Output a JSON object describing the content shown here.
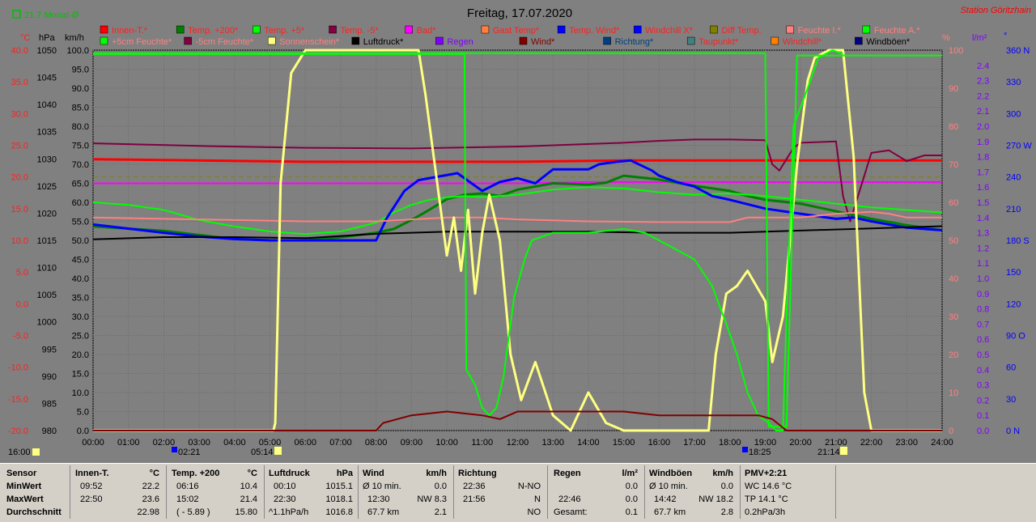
{
  "header": {
    "title": "Freitag, 17.07.2020",
    "station": "Station Göritzhain",
    "monthly": "21.7 Monat-Ø"
  },
  "axis_units": {
    "c": "°C",
    "hpa": "hPa",
    "kmh": "km/h",
    "pct": "%",
    "lm2": "l/m²",
    "deg": "°"
  },
  "legend_row1": [
    {
      "label": "Innen-T.*",
      "color": "#ff0000",
      "text_color": "#ff2020"
    },
    {
      "label": "Temp. +200*",
      "color": "#008000",
      "text_color": "#ff2020"
    },
    {
      "label": "Temp. +5*",
      "color": "#00ff00",
      "text_color": "#ff2020"
    },
    {
      "label": "Temp. -5*",
      "color": "#800040",
      "text_color": "#ff2020"
    },
    {
      "label": "Bad*",
      "color": "#ff00ff",
      "text_color": "#ff2020"
    },
    {
      "label": "Gast Temp*",
      "color": "#ff8040",
      "text_color": "#ff2020"
    },
    {
      "label": "Temp. Wind*",
      "color": "#0000ff",
      "text_color": "#ff2020"
    },
    {
      "label": "Windchill X*",
      "color": "#0000ff",
      "text_color": "#ff2020"
    },
    {
      "label": "Diff Temp.",
      "color": "#808000",
      "text_color": "#ff2020"
    },
    {
      "label": "Feuchte I.*",
      "color": "#ff8080",
      "text_color": "#ff8080"
    },
    {
      "label": "Feuchte A.*",
      "color": "#00ff00",
      "text_color": "#ff8080"
    }
  ],
  "legend_row2": [
    {
      "label": "+5cm Feuchte*",
      "color": "#00ff00",
      "text_color": "#ff8080"
    },
    {
      "label": "-5cm Feuchte*",
      "color": "#800040",
      "text_color": "#ff8080"
    },
    {
      "label": "Sonnenschein*",
      "color": "#ffff80",
      "text_color": "#ff8080"
    },
    {
      "label": "Luftdruck*",
      "color": "#000000",
      "text_color": "#000000"
    },
    {
      "label": "Regen",
      "color": "#8000ff",
      "text_color": "#8000ff"
    },
    {
      "label": "Wind*",
      "color": "#800000",
      "text_color": "#800000"
    },
    {
      "label": "Richtung*",
      "color": "#004080",
      "text_color": "#004080"
    },
    {
      "label": "Taupunkt*",
      "color": "#408080",
      "text_color": "#ff2020"
    },
    {
      "label": "Windchill*",
      "color": "#ff8000",
      "text_color": "#ff2020"
    },
    {
      "label": "Windböen*",
      "color": "#000080",
      "text_color": "#000000"
    }
  ],
  "sun_events": {
    "sunrise": "05:14",
    "dawn": "02:21",
    "sunset": "21:14",
    "dusk": "18:25"
  },
  "chart_data": {
    "type": "line",
    "title": "Freitag, 17.07.2020",
    "x_ticks": [
      "00:00",
      "01:00",
      "02:00",
      "03:00",
      "04:00",
      "05:00",
      "06:00",
      "07:00",
      "08:00",
      "09:00",
      "10:00",
      "11:00",
      "12:00",
      "13:00",
      "14:00",
      "15:00",
      "16:00",
      "17:00",
      "18:00",
      "19:00",
      "20:00",
      "21:00",
      "22:00",
      "23:00",
      "24:00"
    ],
    "xlim": [
      0,
      24
    ],
    "axes": {
      "temp_c": {
        "ticks": [
          "40.0",
          "35.0",
          "30.0",
          "25.0",
          "20.0",
          "15.0",
          "10.0",
          "5.0",
          "0.0",
          "-5.0",
          "-10.0",
          "-15.0",
          "-20.0"
        ],
        "range": [
          -20,
          40
        ]
      },
      "pressure_hpa": {
        "ticks": [
          "1050",
          "1045",
          "1040",
          "1035",
          "1030",
          "1025",
          "1020",
          "1015",
          "1010",
          "1005",
          "1000",
          "995",
          "990",
          "985",
          "980"
        ],
        "range": [
          980,
          1050
        ]
      },
      "speed_kmh": {
        "ticks": [
          "100.0",
          "95.0",
          "90.0",
          "85.0",
          "80.0",
          "75.0",
          "70.0",
          "65.0",
          "60.0",
          "55.0",
          "50.0",
          "45.0",
          "40.0",
          "35.0",
          "30.0",
          "25.0",
          "20.0",
          "15.0",
          "10.0",
          "5.0",
          "0.0"
        ],
        "range": [
          0,
          100
        ]
      },
      "humidity_pct": {
        "ticks": [
          "100",
          "90",
          "80",
          "70",
          "60",
          "50",
          "40",
          "30",
          "20",
          "10",
          "0"
        ],
        "range": [
          0,
          100
        ]
      },
      "rain_lm2": {
        "ticks": [
          "2.4",
          "2.3",
          "2.2",
          "2.1",
          "2.0",
          "1.9",
          "1.8",
          "1.7",
          "1.6",
          "1.5",
          "1.4",
          "1.3",
          "1.2",
          "1.1",
          "1.0",
          "0.9",
          "0.8",
          "0.7",
          "0.6",
          "0.5",
          "0.4",
          "0.3",
          "0.2",
          "0.1",
          "0.0"
        ],
        "range": [
          0,
          2.5
        ]
      },
      "direction_deg": {
        "ticks": [
          "360 N",
          "330",
          "300",
          "270 W",
          "240",
          "210",
          "180 S",
          "150",
          "120",
          "90 O",
          "60",
          "30",
          "0 N"
        ],
        "range": [
          0,
          360
        ]
      }
    },
    "series": [
      {
        "name": "Innen-T.*",
        "color": "#ff0000",
        "width": 3,
        "axis": "temp_c",
        "x": [
          0,
          3,
          6,
          9,
          12,
          15,
          18,
          19.5,
          21,
          23,
          24
        ],
        "y": [
          22.8,
          22.6,
          22.4,
          22.4,
          22.4,
          22.6,
          22.6,
          22.6,
          22.6,
          22.6,
          22.6
        ]
      },
      {
        "name": "Bad*",
        "color": "#ff00ff",
        "width": 2,
        "axis": "temp_c",
        "x": [
          0,
          4,
          8,
          10,
          12,
          14,
          16,
          18,
          20,
          22,
          24
        ],
        "y": [
          19.0,
          19.0,
          19.0,
          19.0,
          19.0,
          19.2,
          19.2,
          19.2,
          19.2,
          19.2,
          19.2
        ]
      },
      {
        "name": "Diff Temp.",
        "color": "#808000",
        "width": 1,
        "dash": "6 4",
        "axis": "temp_c",
        "x": [
          0,
          24
        ],
        "y": [
          20.0,
          20.0
        ]
      },
      {
        "name": "Temp. -5*",
        "color": "#800040",
        "width": 2,
        "axis": "temp_c",
        "x": [
          0,
          3,
          6,
          9,
          12,
          15,
          16,
          17,
          18,
          19,
          19.2,
          19.4,
          19.8,
          20,
          21,
          21.2,
          21.4,
          22,
          22.5,
          23,
          23.5,
          24
        ],
        "y": [
          25.3,
          24.9,
          24.6,
          24.5,
          24.8,
          25.4,
          25.7,
          25.9,
          25.9,
          25.8,
          22,
          21.0,
          24.6,
          25.4,
          25.6,
          17,
          13,
          23.8,
          24.2,
          22.5,
          23.4,
          23.4
        ]
      },
      {
        "name": "Temp. +200*",
        "color": "#008000",
        "width": 3,
        "axis": "temp_c",
        "x": [
          0,
          2,
          4,
          5,
          6,
          7,
          8,
          8.5,
          9,
          9.5,
          10,
          10.5,
          11,
          11.5,
          12,
          13,
          14,
          14.5,
          15,
          16,
          17,
          18,
          18.5,
          19,
          20,
          21,
          22,
          23,
          24
        ],
        "y": [
          12.2,
          11.5,
          10.2,
          10.0,
          10.0,
          10.5,
          11.2,
          11.8,
          13.2,
          14.8,
          16.5,
          17.2,
          17.4,
          17.0,
          18.0,
          19.0,
          18.8,
          19.1,
          20.2,
          19.6,
          18.6,
          17.8,
          17.0,
          16.4,
          15.8,
          14.6,
          13.4,
          12.4,
          11.6
        ]
      },
      {
        "name": "Temp. +5*",
        "color": "#00ff00",
        "width": 2,
        "axis": "temp_c",
        "x": [
          0,
          1,
          2,
          3,
          4,
          5,
          6,
          7,
          8,
          8.5,
          9,
          9.5,
          10,
          10.5,
          11,
          12,
          13,
          14,
          15,
          16,
          17,
          18,
          19,
          20,
          21,
          22,
          23,
          24
        ],
        "y": [
          16.0,
          15.6,
          14.8,
          13.2,
          12.2,
          11.4,
          11.0,
          11.4,
          12.8,
          14.4,
          15.6,
          16.4,
          16.8,
          17.0,
          16.8,
          17.2,
          18.0,
          18.4,
          18.2,
          17.6,
          17.2,
          17.4,
          17.0,
          16.4,
          15.8,
          15.2,
          14.8,
          14.4
        ]
      },
      {
        "name": "Temp. Wind*",
        "color": "#0000ff",
        "width": 3,
        "axis": "temp_c",
        "x": [
          0,
          2,
          3,
          4,
          5,
          6,
          7,
          8,
          8.3,
          8.8,
          9.2,
          9.8,
          10.3,
          11,
          11.5,
          12,
          12.5,
          13,
          13.5,
          14,
          14.3,
          14.8,
          15.2,
          15.8,
          16,
          16.5,
          17,
          17.5,
          18,
          19,
          20,
          21,
          21.5,
          22,
          23,
          24
        ],
        "y": [
          12.5,
          11.2,
          10.6,
          10.2,
          10.0,
          10.0,
          10.0,
          10.0,
          13.5,
          17.8,
          19.5,
          20.1,
          20.6,
          17.8,
          19.2,
          19.8,
          19.0,
          21.2,
          21.2,
          21.2,
          22.0,
          22.4,
          22.6,
          21.0,
          20.2,
          19.2,
          18.5,
          17.0,
          16.4,
          15.0,
          14.2,
          13.4,
          13.6,
          13.0,
          12.0,
          11.6
        ]
      },
      {
        "name": "Feuchte I.*",
        "color": "#ff8080",
        "width": 2,
        "axis": "humidity_pct",
        "x": [
          0,
          3,
          6,
          8,
          10,
          11,
          12,
          14,
          16,
          17,
          18,
          18.5,
          19,
          20,
          21,
          22,
          22.5,
          23,
          24
        ],
        "y": [
          56,
          55.5,
          55,
          55,
          56,
          56,
          55.5,
          55,
          54.8,
          54.8,
          54.8,
          56,
          56,
          56,
          57,
          57.5,
          57,
          56,
          56
        ]
      },
      {
        "name": "Luftdruck*",
        "color": "#000000",
        "width": 2,
        "axis": "pressure_hpa",
        "x": [
          0,
          2,
          4,
          6,
          8,
          10,
          12,
          14,
          16,
          18,
          20,
          22,
          24
        ],
        "y": [
          1015.2,
          1015.6,
          1015.6,
          1015.4,
          1016.2,
          1016.6,
          1016.6,
          1016.6,
          1016.4,
          1016.4,
          1016.8,
          1017.2,
          1017.6
        ]
      },
      {
        "name": "Sonnenschein*",
        "color": "#ffff80",
        "width": 3,
        "axis": "speed_kmh",
        "x": [
          0,
          5.1,
          5.15,
          5.3,
          5.6,
          6,
          6.5,
          8,
          9.2,
          9.4,
          9.6,
          10,
          10.2,
          10.4,
          10.6,
          10.8,
          11,
          11.2,
          11.5,
          11.8,
          12.1,
          12.5,
          13,
          13.5,
          14,
          14.5,
          15,
          16,
          16.5,
          17,
          17.4,
          17.6,
          17.9,
          18.2,
          18.5,
          19,
          19.2,
          19.5,
          19.9,
          20.2,
          20.4,
          20.8,
          21,
          21.2,
          21.5,
          21.8,
          22,
          24
        ],
        "y": [
          0,
          0,
          2,
          65,
          94,
          100,
          100,
          100,
          100,
          88,
          74,
          46,
          56,
          42,
          58,
          36,
          52,
          62,
          50,
          20,
          8,
          18,
          4,
          0,
          10,
          2,
          0,
          0,
          0,
          0,
          0,
          20,
          36,
          38,
          42,
          34,
          18,
          30,
          70,
          92,
          98,
          100,
          100,
          100,
          72,
          10,
          0,
          0
        ]
      },
      {
        "name": "Feuchte A.*",
        "color": "#00ff00",
        "width": 2,
        "axis": "humidity_pct",
        "x": [
          0,
          10.5,
          10.55,
          11,
          11.4,
          11.8,
          12.2,
          12.5,
          12.8,
          13.5,
          14.5,
          15.2,
          16,
          17,
          17.5,
          18,
          18.4,
          18.6,
          19,
          19.1,
          19.3,
          19.6,
          19.9,
          20.2,
          20.5,
          21,
          21.2,
          24
        ],
        "y": [
          99.2,
          99.2,
          99.2,
          99.2,
          99.2,
          99.2,
          99.2,
          99.2,
          99.2,
          99.2,
          99.2,
          99.2,
          99.2,
          99.2,
          99.2,
          99.2,
          99.2,
          99.2,
          99.2,
          1,
          1,
          1,
          98.6,
          98.6,
          98.6,
          98.6,
          98.6,
          98.6
        ]
      },
      {
        "name": "+5cm Feuchte*",
        "color": "#00ff00",
        "width": 2,
        "axis": "speed_kmh",
        "x": [
          0,
          10.5,
          10.55,
          10.8,
          11,
          11.2,
          11.4,
          11.6,
          11.9,
          12.2,
          12.4,
          13,
          14,
          15,
          15.6,
          16,
          17,
          17.5,
          17.9,
          18.2,
          18.5,
          18.8,
          19.1,
          19.3,
          19.5,
          19.6,
          19.8,
          20.2,
          20.5,
          20.9,
          21.2
        ],
        "y": [
          99,
          99,
          16,
          12,
          6,
          4,
          6,
          14,
          35,
          45,
          50,
          52,
          52,
          53,
          52,
          50,
          45,
          38,
          28,
          20,
          10,
          4,
          2,
          0,
          0,
          30,
          80,
          90,
          98,
          100,
          99
        ]
      },
      {
        "name": "Wind*",
        "color": "#800000",
        "width": 2,
        "axis": "speed_kmh",
        "x": [
          0,
          8,
          8.2,
          9,
          10,
          11,
          11.5,
          12,
          13,
          14,
          15,
          16,
          17,
          18,
          18.8,
          19.2,
          19.6,
          20,
          24
        ],
        "y": [
          0,
          0,
          2,
          4,
          5,
          4,
          3,
          5,
          5,
          5,
          5,
          4,
          4,
          4,
          4,
          3,
          0,
          0,
          0
        ]
      }
    ]
  },
  "stats": {
    "sensor": {
      "title": "Sensor",
      "rows": [
        "MinWert",
        "MaxWert",
        "Durchschnitt"
      ]
    },
    "innen": {
      "title": "Innen-T.",
      "unit": "°C",
      "min_time": "09:52",
      "min_val": "22.2",
      "max_time": "22:50",
      "max_val": "23.6",
      "avg": "22.98"
    },
    "temp200": {
      "title": "Temp. +200",
      "unit": "°C",
      "min_time": "06:16",
      "min_val": "10.4",
      "max_time": "15:02",
      "max_val": "21.4",
      "avg_note": "( - 5.89 )",
      "avg": "15.80"
    },
    "luftdruck": {
      "title": "Luftdruck",
      "unit": "hPa",
      "min_time": "00:10",
      "min_val": "1015.1",
      "max_time": "22:30",
      "max_val": "1018.1",
      "avg_note": "^1.1hPa/h",
      "avg": "1016.8"
    },
    "wind": {
      "title": "Wind",
      "unit": "km/h",
      "r1a": "Ø 10 min.",
      "r1b": "0.0",
      "r2a": "12:30",
      "r2b": "NW 8.3",
      "r3a": "67.7 km",
      "r3b": "2.1"
    },
    "richtung": {
      "title": "Richtung",
      "r1a": "22:36",
      "r1b": "N-NO",
      "r2a": "21:56",
      "r2b": "N",
      "r3b": "NO"
    },
    "regen": {
      "title": "Regen",
      "unit": "l/m²",
      "r2a": "22:46",
      "r2b": "0.0",
      "r3a": "Gesamt:",
      "r3b": "0.1",
      "r1b": "0.0"
    },
    "boeen": {
      "title": "Windböen",
      "unit": "km/h",
      "r1a": "Ø 10 min.",
      "r1b": "0.0",
      "r2a": "14:42",
      "r2b": "NW 18.2",
      "r3a": "67.7 km",
      "r3b": "2.8"
    },
    "pmv": {
      "title": "PMV+2:21",
      "r1": "WC 14.6 °C",
      "r2": "TP 14.1 °C",
      "r3": "0.2hPa/3h"
    }
  }
}
